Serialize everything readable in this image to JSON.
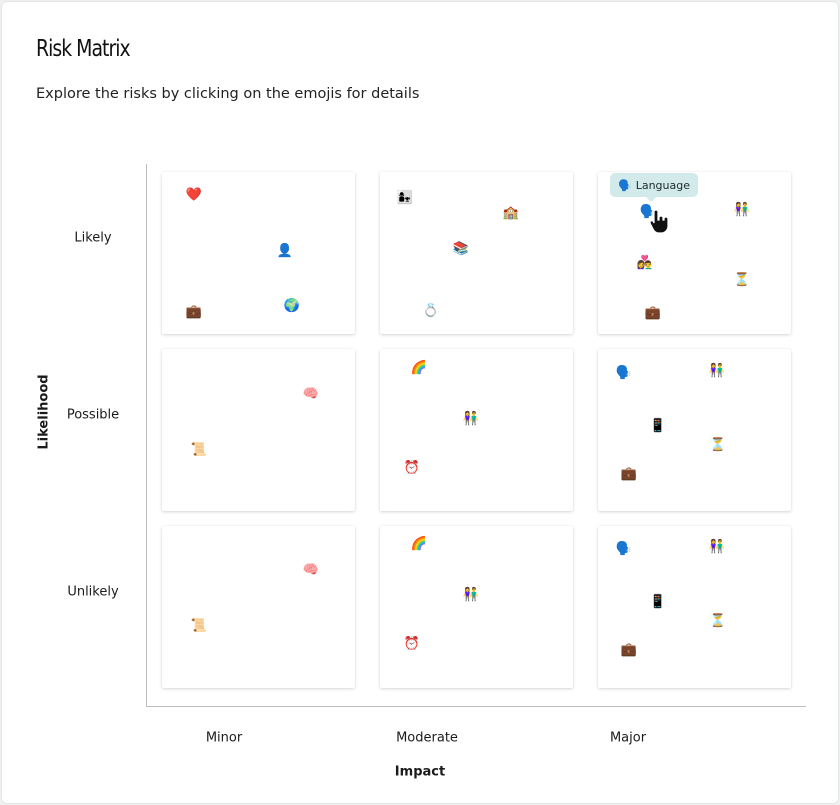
{
  "header": {
    "title": "Risk Matrix",
    "subtitle": "Explore the risks by clicking on the emojis for details"
  },
  "axes": {
    "y_title": "Likelihood",
    "x_title": "Impact",
    "rows": [
      "Likely",
      "Possible",
      "Unlikely"
    ],
    "columns": [
      "Minor",
      "Moderate",
      "Major"
    ]
  },
  "tooltip": {
    "icon": "🗣️",
    "label": "Language"
  },
  "cells": {
    "likely_minor": [
      "❤️",
      "👤",
      "💼",
      "🌍"
    ],
    "likely_moderate": [
      "👩‍👧",
      "🏫",
      "📚",
      "💍"
    ],
    "likely_major": [
      "🗣️",
      "👫",
      "👩‍❤️‍👨",
      "⏳",
      "💼"
    ],
    "possible_minor": [
      "🧠",
      "📜"
    ],
    "possible_moderate": [
      "🌈",
      "👫",
      "⏰"
    ],
    "possible_major": [
      "🗣️",
      "👫",
      "📱",
      "⏳",
      "💼"
    ],
    "unlikely_minor": [
      "🧠",
      "📜"
    ],
    "unlikely_moderate": [
      "🌈",
      "👫",
      "⏰"
    ],
    "unlikely_major": [
      "🗣️",
      "👫",
      "📱",
      "⏳",
      "💼"
    ]
  },
  "colors": {
    "tooltip_bg": "#d2ebea",
    "axis": "#bdbdbd",
    "page_bg": "#eef1ef"
  }
}
